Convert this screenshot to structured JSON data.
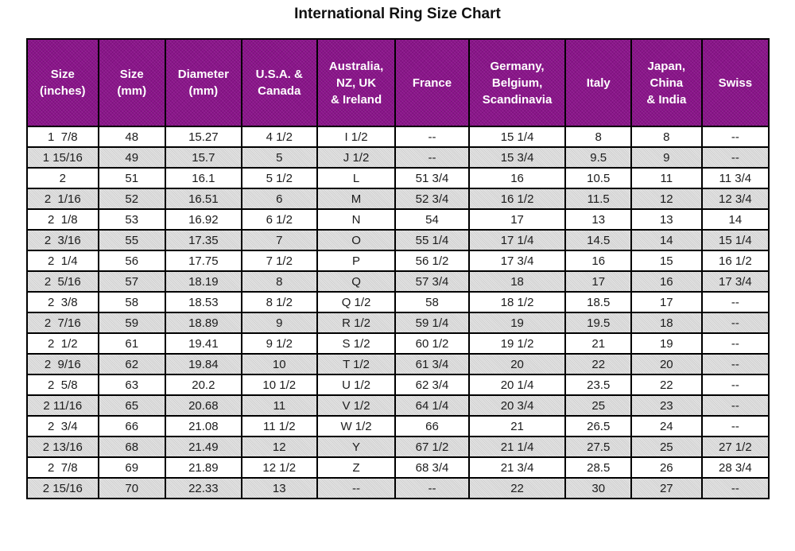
{
  "title": "International Ring Size Chart",
  "colors": {
    "header_bg": "#8b148b",
    "header_text": "#ffffff",
    "row_bg": "#ffffff",
    "row_alt_bg": "#d0d0d0",
    "border": "#000000",
    "cell_text": "#1c1c1c"
  },
  "chart_data": {
    "type": "table",
    "title": "International Ring Size Chart",
    "columns": [
      "Size\n(inches)",
      "Size\n(mm)",
      "Diameter\n(mm)",
      "U.S.A. &\nCanada",
      "Australia,\nNZ, UK\n& Ireland",
      "France",
      "Germany,\nBelgium,\nScandinavia",
      "Italy",
      "Japan,\nChina\n& India",
      "Swiss"
    ],
    "rows": [
      [
        "1  7/8",
        "48",
        "15.27",
        "4 1/2",
        "I 1/2",
        "--",
        "15 1/4",
        "8",
        "8",
        "--"
      ],
      [
        "1 15/16",
        "49",
        "15.7",
        "5",
        "J 1/2",
        "--",
        "15 3/4",
        "9.5",
        "9",
        "--"
      ],
      [
        "2",
        "51",
        "16.1",
        "5 1/2",
        "L",
        "51 3/4",
        "16",
        "10.5",
        "11",
        "11 3/4"
      ],
      [
        "2  1/16",
        "52",
        "16.51",
        "6",
        "M",
        "52 3/4",
        "16 1/2",
        "11.5",
        "12",
        "12 3/4"
      ],
      [
        "2  1/8",
        "53",
        "16.92",
        "6 1/2",
        "N",
        "54",
        "17",
        "13",
        "13",
        "14"
      ],
      [
        "2  3/16",
        "55",
        "17.35",
        "7",
        "O",
        "55 1/4",
        "17 1/4",
        "14.5",
        "14",
        "15 1/4"
      ],
      [
        "2  1/4",
        "56",
        "17.75",
        "7 1/2",
        "P",
        "56 1/2",
        "17 3/4",
        "16",
        "15",
        "16 1/2"
      ],
      [
        "2  5/16",
        "57",
        "18.19",
        "8",
        "Q",
        "57 3/4",
        "18",
        "17",
        "16",
        "17 3/4"
      ],
      [
        "2  3/8",
        "58",
        "18.53",
        "8 1/2",
        "Q 1/2",
        "58",
        "18 1/2",
        "18.5",
        "17",
        "--"
      ],
      [
        "2  7/16",
        "59",
        "18.89",
        "9",
        "R 1/2",
        "59 1/4",
        "19",
        "19.5",
        "18",
        "--"
      ],
      [
        "2  1/2",
        "61",
        "19.41",
        "9 1/2",
        "S 1/2",
        "60 1/2",
        "19 1/2",
        "21",
        "19",
        "--"
      ],
      [
        "2  9/16",
        "62",
        "19.84",
        "10",
        "T 1/2",
        "61 3/4",
        "20",
        "22",
        "20",
        "--"
      ],
      [
        "2  5/8",
        "63",
        "20.2",
        "10 1/2",
        "U 1/2",
        "62 3/4",
        "20 1/4",
        "23.5",
        "22",
        "--"
      ],
      [
        "2 11/16",
        "65",
        "20.68",
        "11",
        "V 1/2",
        "64 1/4",
        "20 3/4",
        "25",
        "23",
        "--"
      ],
      [
        "2  3/4",
        "66",
        "21.08",
        "11 1/2",
        "W 1/2",
        "66",
        "21",
        "26.5",
        "24",
        "--"
      ],
      [
        "2 13/16",
        "68",
        "21.49",
        "12",
        "Y",
        "67 1/2",
        "21 1/4",
        "27.5",
        "25",
        "27 1/2"
      ],
      [
        "2  7/8",
        "69",
        "21.89",
        "12 1/2",
        "Z",
        "68 3/4",
        "21 3/4",
        "28.5",
        "26",
        "28 3/4"
      ],
      [
        "2 15/16",
        "70",
        "22.33",
        "13",
        "--",
        "--",
        "22",
        "30",
        "27",
        "--"
      ]
    ]
  }
}
